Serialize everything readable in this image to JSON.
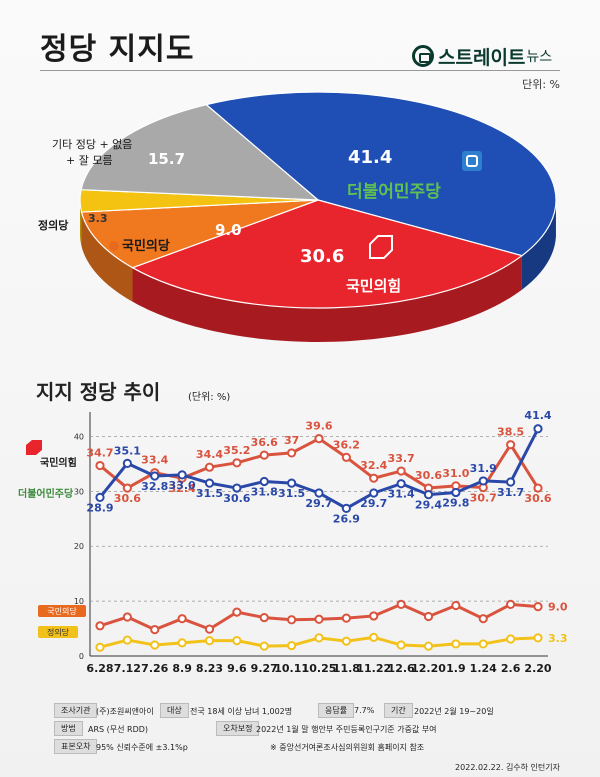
{
  "header": {
    "title": "정당 지지도",
    "brand": "스트레이트",
    "brand_small": "뉴스",
    "unit": "단위: %"
  },
  "pie_labels": {
    "dem_value": "41.4",
    "dem_name": "더불어민주당",
    "ppp_value": "30.6",
    "ppp_name": "국민의힘",
    "people_value": "9.0",
    "people_name": "국민의당",
    "justice_value": "3.3",
    "justice_name": "정의당",
    "other_value": "15.7",
    "other_name_line1": "기타 정당 + 없음",
    "other_name_line2": "+ 잘 모름"
  },
  "trend": {
    "title": "지지 정당 추이",
    "unit": "(단위: %)",
    "label_ppp": "국민의힘",
    "label_dem": "더불어민주당",
    "badge_people": "국민의당",
    "badge_justice": "정의당"
  },
  "chart_data": [
    {
      "type": "pie",
      "title": "정당 지지도",
      "unit": "단위: %",
      "categories": [
        "더불어민주당",
        "국민의힘",
        "국민의당",
        "정의당",
        "기타 정당 + 없음 + 잘 모름"
      ],
      "values": [
        41.4,
        30.6,
        9.0,
        3.3,
        15.7
      ],
      "colors": [
        "#1f4fb5",
        "#e8252d",
        "#f0781e",
        "#f4c312",
        "#a9a9a9"
      ]
    },
    {
      "type": "line",
      "title": "지지 정당 추이",
      "unit": "(단위: %)",
      "x": [
        "6.28",
        "7.12",
        "7.26",
        "8.9",
        "8.23",
        "9.6",
        "9.27",
        "10.11",
        "10.25",
        "11.8",
        "11.22",
        "12.6",
        "12.20",
        "1.9",
        "1.24",
        "2.6",
        "2.20"
      ],
      "ylim": [
        0,
        43
      ],
      "yticks": [
        0,
        10,
        20,
        30,
        40
      ],
      "grid": true,
      "series": [
        {
          "name": "국민의힘",
          "color": "#d9533e",
          "values": [
            34.7,
            30.6,
            33.4,
            32.4,
            34.4,
            35.2,
            36.6,
            37,
            39.6,
            36.2,
            32.4,
            33.7,
            30.6,
            31.0,
            30.7,
            38.5,
            30.6
          ]
        },
        {
          "name": "더불어민주당",
          "color": "#2a48a8",
          "values": [
            28.9,
            35.1,
            32.8,
            33.0,
            31.5,
            30.6,
            31.8,
            31.5,
            29.7,
            26.9,
            29.7,
            31.4,
            29.4,
            29.8,
            31.9,
            31.7,
            41.4
          ]
        },
        {
          "name": "국민의당",
          "color": "#d9533e",
          "values": [
            5.5,
            7.1,
            4.8,
            6.8,
            4.9,
            8.0,
            7.0,
            6.6,
            6.7,
            6.9,
            7.3,
            9.4,
            7.2,
            9.2,
            6.8,
            9.4,
            9.0
          ]
        },
        {
          "name": "정의당",
          "color": "#f2c21b",
          "values": [
            1.6,
            2.9,
            2.0,
            2.4,
            2.8,
            2.8,
            1.8,
            1.9,
            3.3,
            2.7,
            3.4,
            2.0,
            1.8,
            2.2,
            2.2,
            3.1,
            3.3
          ]
        }
      ],
      "labels": {
        "국민의힘": [
          "34.7",
          "30.6",
          "33.4",
          "32.4",
          "34.4",
          "35.2",
          "36.6",
          "37",
          "39.6",
          "36.2",
          "32.4",
          "33.7",
          "30.6",
          "31.0",
          "30.7",
          "38.5",
          "30.6"
        ],
        "더불어민주당": [
          "28.9",
          "35.1",
          "32.8",
          "33.0",
          "31.5",
          "30.6",
          "31.8",
          "31.5",
          "29.7",
          "26.9",
          "29.7",
          "31.4",
          "29.4",
          "29.8",
          "31.9",
          "31.7",
          "41.4"
        ],
        "국민의당": [
          "",
          "",
          "",
          "",
          "",
          "",
          "",
          "",
          "",
          "",
          "",
          "",
          "",
          "",
          "",
          "",
          "9.0"
        ],
        "정의당": [
          "",
          "",
          "",
          "",
          "",
          "",
          "",
          "",
          "",
          "",
          "",
          "",
          "",
          "",
          "",
          "",
          "3.3"
        ]
      }
    }
  ],
  "footer": {
    "survey_org_label": "조사기관",
    "survey_org": "(주)조원씨앤아이",
    "target_label": "대상",
    "target": "전국 18세 이상 남녀 1,002명",
    "response_label": "응답률",
    "response": "7.7%",
    "period_label": "기간",
    "period": "2022년 2월 19~20일",
    "method_label": "방법",
    "method": "ARS (무선 RDD)",
    "weight_label": "오차보정",
    "weight": "2022년 1월 말 행안부 주민등록인구기준 가중값 부여",
    "error_label": "표본오차",
    "error": "95% 신뢰수준에 ±3.1%p",
    "note": "※ 중앙선거여론조사심의위원회 홈페이지 참조",
    "credit": "2022.02.22. 김수하 인턴기자"
  }
}
